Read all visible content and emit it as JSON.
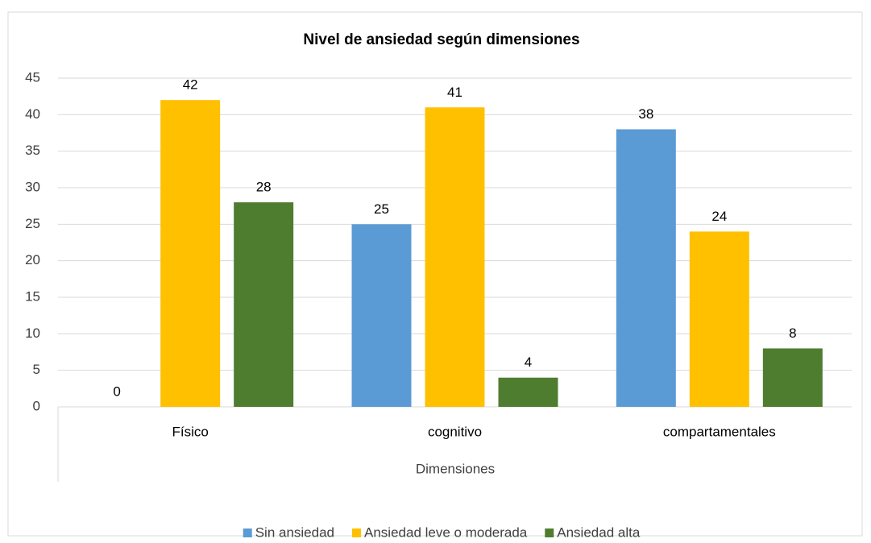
{
  "chart_data": {
    "type": "bar",
    "title": "Nivel de ansiedad según dimensiones",
    "x_label": "Dimensiones",
    "categories": [
      "Físico",
      "cognitivo",
      "compartamentales"
    ],
    "series": [
      {
        "name": "Sin ansiedad",
        "color": "#5b9bd5",
        "values": [
          0,
          25,
          38
        ]
      },
      {
        "name": "Ansiedad leve o moderada",
        "color": "#ffc000",
        "values": [
          42,
          41,
          24
        ]
      },
      {
        "name": "Ansiedad alta",
        "color": "#4e7d2f",
        "values": [
          28,
          4,
          8
        ]
      }
    ],
    "ylim": [
      0,
      45
    ],
    "yticks": [
      0,
      5,
      10,
      15,
      20,
      25,
      30,
      35,
      40,
      45
    ],
    "grid": true,
    "legend": "bottom"
  }
}
